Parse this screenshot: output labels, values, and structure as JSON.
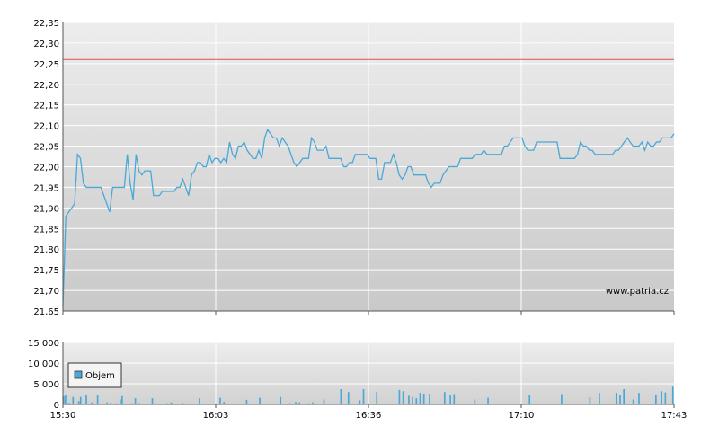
{
  "chart_data": [
    {
      "type": "line",
      "title": "",
      "xlabel": "",
      "ylabel": "",
      "ylim": [
        21.65,
        22.35
      ],
      "y_ticks": [
        "21,65",
        "21,70",
        "21,75",
        "21,80",
        "21,85",
        "21,90",
        "21,95",
        "22,00",
        "22,05",
        "22,10",
        "22,15",
        "22,20",
        "22,25",
        "22,30",
        "22,35"
      ],
      "x_ticks": [
        "15:30",
        "16:03",
        "16:36",
        "17:10",
        "17:43"
      ],
      "reference_line": {
        "value": 22.26,
        "color": "#d9534f"
      },
      "watermark": "www.patria.cz",
      "line_color": "#4aa8d8",
      "series": [
        {
          "x_range_minutes": [
            0,
            133
          ],
          "values": [
            21.66,
            21.88,
            21.89,
            21.9,
            21.91,
            22.03,
            22.02,
            21.96,
            21.95,
            21.95,
            21.95,
            21.95,
            21.95,
            21.95,
            21.93,
            21.91,
            21.89,
            21.95,
            21.95,
            21.95,
            21.95,
            21.95,
            22.03,
            21.96,
            21.92,
            22.03,
            21.99,
            21.98,
            21.99,
            21.99,
            21.99,
            21.93,
            21.93,
            21.93,
            21.94,
            21.94,
            21.94,
            21.94,
            21.94,
            21.95,
            21.95,
            21.97,
            21.95,
            21.93,
            21.98,
            21.99,
            22.01,
            22.01,
            22.0,
            22.0,
            22.03,
            22.01,
            22.02,
            22.02,
            22.01,
            22.02,
            22.01,
            22.06,
            22.03,
            22.02,
            22.05,
            22.05,
            22.06,
            22.04,
            22.03,
            22.02,
            22.02,
            22.04,
            22.02,
            22.07,
            22.09,
            22.08,
            22.07,
            22.07,
            22.05,
            22.07,
            22.06,
            22.05,
            22.03,
            22.01,
            22.0,
            22.01,
            22.02,
            22.02,
            22.02,
            22.07,
            22.06,
            22.04,
            22.04,
            22.04,
            22.05,
            22.02,
            22.02,
            22.02,
            22.02,
            22.02,
            22.0,
            22.0,
            22.01,
            22.01,
            22.03,
            22.03,
            22.03,
            22.03,
            22.03,
            22.02,
            22.02,
            22.02,
            21.97,
            21.97,
            22.01,
            22.01,
            22.01,
            22.03,
            22.01,
            21.98,
            21.97,
            21.98,
            22.0,
            22.0,
            21.98,
            21.98,
            21.98,
            21.98,
            21.98,
            21.96,
            21.95,
            21.96,
            21.96,
            21.96,
            21.98,
            21.99,
            22.0,
            22.0,
            22.0,
            22.0,
            22.02,
            22.02,
            22.02,
            22.02,
            22.02,
            22.03,
            22.03,
            22.03,
            22.04,
            22.03,
            22.03,
            22.03,
            22.03,
            22.03,
            22.03,
            22.05,
            22.05,
            22.06,
            22.07,
            22.07,
            22.07,
            22.07,
            22.05,
            22.04,
            22.04,
            22.04,
            22.06,
            22.06,
            22.06,
            22.06,
            22.06,
            22.06,
            22.06,
            22.06,
            22.02,
            22.02,
            22.02,
            22.02,
            22.02,
            22.02,
            22.03,
            22.06,
            22.05,
            22.05,
            22.04,
            22.04,
            22.03,
            22.03,
            22.03,
            22.03,
            22.03,
            22.03,
            22.03,
            22.04,
            22.04,
            22.05,
            22.06,
            22.07,
            22.06,
            22.05,
            22.05,
            22.05,
            22.06,
            22.04,
            22.06,
            22.05,
            22.05,
            22.06,
            22.06,
            22.07,
            22.07,
            22.07,
            22.07,
            22.08
          ]
        }
      ]
    },
    {
      "type": "bar",
      "title": "",
      "xlabel": "",
      "ylabel": "",
      "ylim": [
        0,
        15000
      ],
      "y_ticks": [
        "0",
        "5 000",
        "10 000",
        "15 000"
      ],
      "x_ticks": [
        "15:30",
        "16:03",
        "16:36",
        "17:10",
        "17:43"
      ],
      "bar_color": "#4aa8d8",
      "series": [
        {
          "name": "Objem",
          "x_range_minutes": [
            0,
            133
          ],
          "values": [
            2000,
            2200,
            0,
            400,
            0,
            1800,
            0,
            0,
            800,
            1800,
            0,
            0,
            2400,
            0,
            0,
            500,
            0,
            0,
            2200,
            0,
            0,
            0,
            0,
            500,
            0,
            400,
            0,
            0,
            300,
            0,
            1200,
            2000,
            0,
            0,
            0,
            0,
            300,
            0,
            1500,
            0,
            300,
            0,
            0,
            0,
            0,
            200,
            0,
            1500,
            0,
            0,
            0,
            200,
            0,
            0,
            0,
            300,
            0,
            500,
            0,
            0,
            0,
            0,
            0,
            400,
            0,
            0,
            0,
            0,
            0,
            0,
            0,
            0,
            1500,
            0,
            0,
            0,
            0,
            0,
            0,
            0,
            0,
            0,
            0,
            1600,
            0,
            600,
            0,
            0,
            0,
            0,
            0,
            0,
            0,
            0,
            0,
            0,
            0,
            1100,
            0,
            0,
            0,
            0,
            0,
            0,
            1600,
            0,
            0,
            0,
            0,
            0,
            0,
            0,
            0,
            0,
            0,
            1800,
            0,
            0,
            0,
            0,
            300,
            0,
            0,
            600,
            0,
            500,
            0,
            0,
            0,
            0,
            300,
            0,
            500,
            0,
            0,
            0,
            0,
            0,
            1200,
            0,
            0,
            0,
            0,
            0,
            0,
            0,
            0,
            3700,
            0,
            0,
            0,
            3000,
            0,
            0,
            0,
            0,
            0,
            1000,
            0,
            3700,
            0,
            0,
            0,
            0,
            0,
            0,
            3000,
            0,
            0,
            0,
            0,
            0,
            0,
            0,
            0,
            0,
            0,
            0,
            3500,
            0,
            3200,
            0,
            0,
            2100,
            0,
            1800,
            0,
            1500,
            0,
            2800,
            0,
            2600,
            0,
            0,
            2600,
            0,
            0,
            0,
            0,
            0,
            0,
            0,
            3000,
            0,
            0,
            2200,
            0,
            2500,
            0,
            0,
            0,
            0,
            0,
            0,
            0,
            0,
            0,
            0,
            1200,
            0,
            0,
            0,
            0,
            0,
            0,
            1600,
            0,
            0,
            0,
            0,
            0,
            0,
            0,
            0,
            0,
            0,
            0,
            0,
            0,
            0,
            0,
            0,
            0,
            0,
            0,
            0,
            0,
            2400,
            0,
            0,
            0,
            0,
            0,
            0,
            0,
            0,
            0,
            0,
            0,
            0,
            0,
            0,
            0,
            0,
            2500,
            0,
            0,
            0,
            0,
            0,
            0,
            0,
            0,
            0,
            0,
            0,
            0,
            0,
            0,
            1700,
            0,
            0,
            0,
            0,
            2800,
            0,
            0,
            0,
            0,
            0,
            0,
            0,
            0,
            2800,
            0,
            2200,
            0,
            3700,
            0,
            0,
            0,
            0,
            1200,
            0,
            0,
            2800,
            0,
            0,
            0,
            0,
            0,
            0,
            0,
            0,
            2400,
            0,
            0,
            3200,
            0,
            2900,
            0,
            0,
            0,
            4300
          ]
        }
      ],
      "legend": {
        "label": "Objem",
        "placement": "top-left"
      }
    }
  ]
}
